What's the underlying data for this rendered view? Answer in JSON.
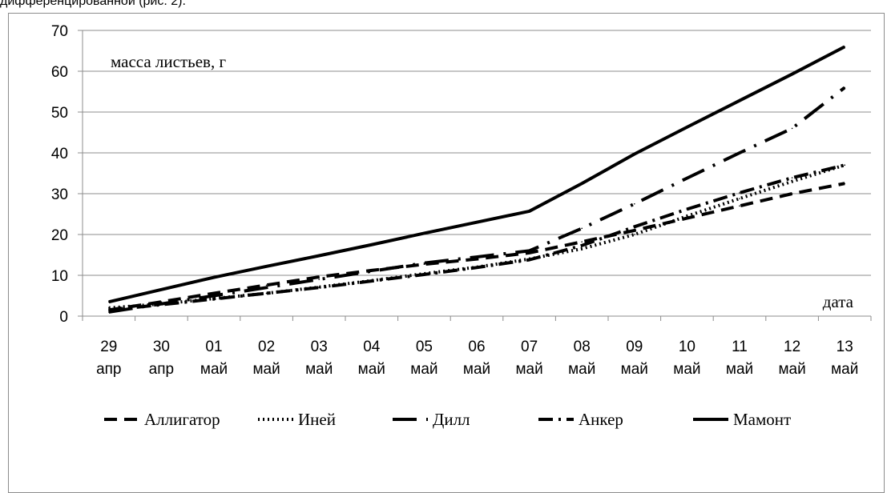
{
  "caption_fragment": "дифференцированной (рис. 2).",
  "chart_data": {
    "type": "line",
    "title": "",
    "ylabel": "масса листьев, г",
    "xlabel": "дата",
    "ylim": [
      0,
      70
    ],
    "yticks": [
      0,
      10,
      20,
      30,
      40,
      50,
      60,
      70
    ],
    "grid": "horizontal",
    "legend_position": "bottom",
    "categories": [
      [
        "29",
        "апр"
      ],
      [
        "30",
        "апр"
      ],
      [
        "01",
        "май"
      ],
      [
        "02",
        "май"
      ],
      [
        "03",
        "май"
      ],
      [
        "04",
        "май"
      ],
      [
        "05",
        "май"
      ],
      [
        "06",
        "май"
      ],
      [
        "07",
        "май"
      ],
      [
        "08",
        "май"
      ],
      [
        "09",
        "май"
      ],
      [
        "10",
        "май"
      ],
      [
        "11",
        "май"
      ],
      [
        "12",
        "май"
      ],
      [
        "13",
        "май"
      ]
    ],
    "series": [
      {
        "name": "Аллигатор",
        "dash": "dash",
        "values": [
          1.5,
          3.5,
          5.6,
          7.6,
          9.6,
          11.2,
          12.7,
          14.0,
          15.5,
          18.2,
          21.0,
          24.0,
          27.0,
          30.0,
          32.5
        ]
      },
      {
        "name": "Иней",
        "dash": "dot",
        "values": [
          2.0,
          3.0,
          4.3,
          5.6,
          7.1,
          8.7,
          10.4,
          12.0,
          14.0,
          16.5,
          20.0,
          24.5,
          28.8,
          33.0,
          37.0
        ]
      },
      {
        "name": "Дилл",
        "dash": "longdashdot",
        "values": [
          1.0,
          3.0,
          5.0,
          7.0,
          9.0,
          11.0,
          13.0,
          14.5,
          16.0,
          21.5,
          27.5,
          33.8,
          40.0,
          46.0,
          56.0
        ]
      },
      {
        "name": "Анкер",
        "dash": "dashdot",
        "values": [
          1.5,
          2.8,
          4.2,
          5.6,
          7.0,
          8.6,
          10.2,
          11.9,
          13.8,
          17.3,
          21.9,
          26.2,
          30.2,
          33.9,
          37.0
        ]
      },
      {
        "name": "Мамонт",
        "dash": "solid",
        "values": [
          3.5,
          6.5,
          9.5,
          12.2,
          14.8,
          17.5,
          20.3,
          23.0,
          25.7,
          32.5,
          39.7,
          46.3,
          52.8,
          59.3,
          66.0
        ]
      }
    ]
  }
}
